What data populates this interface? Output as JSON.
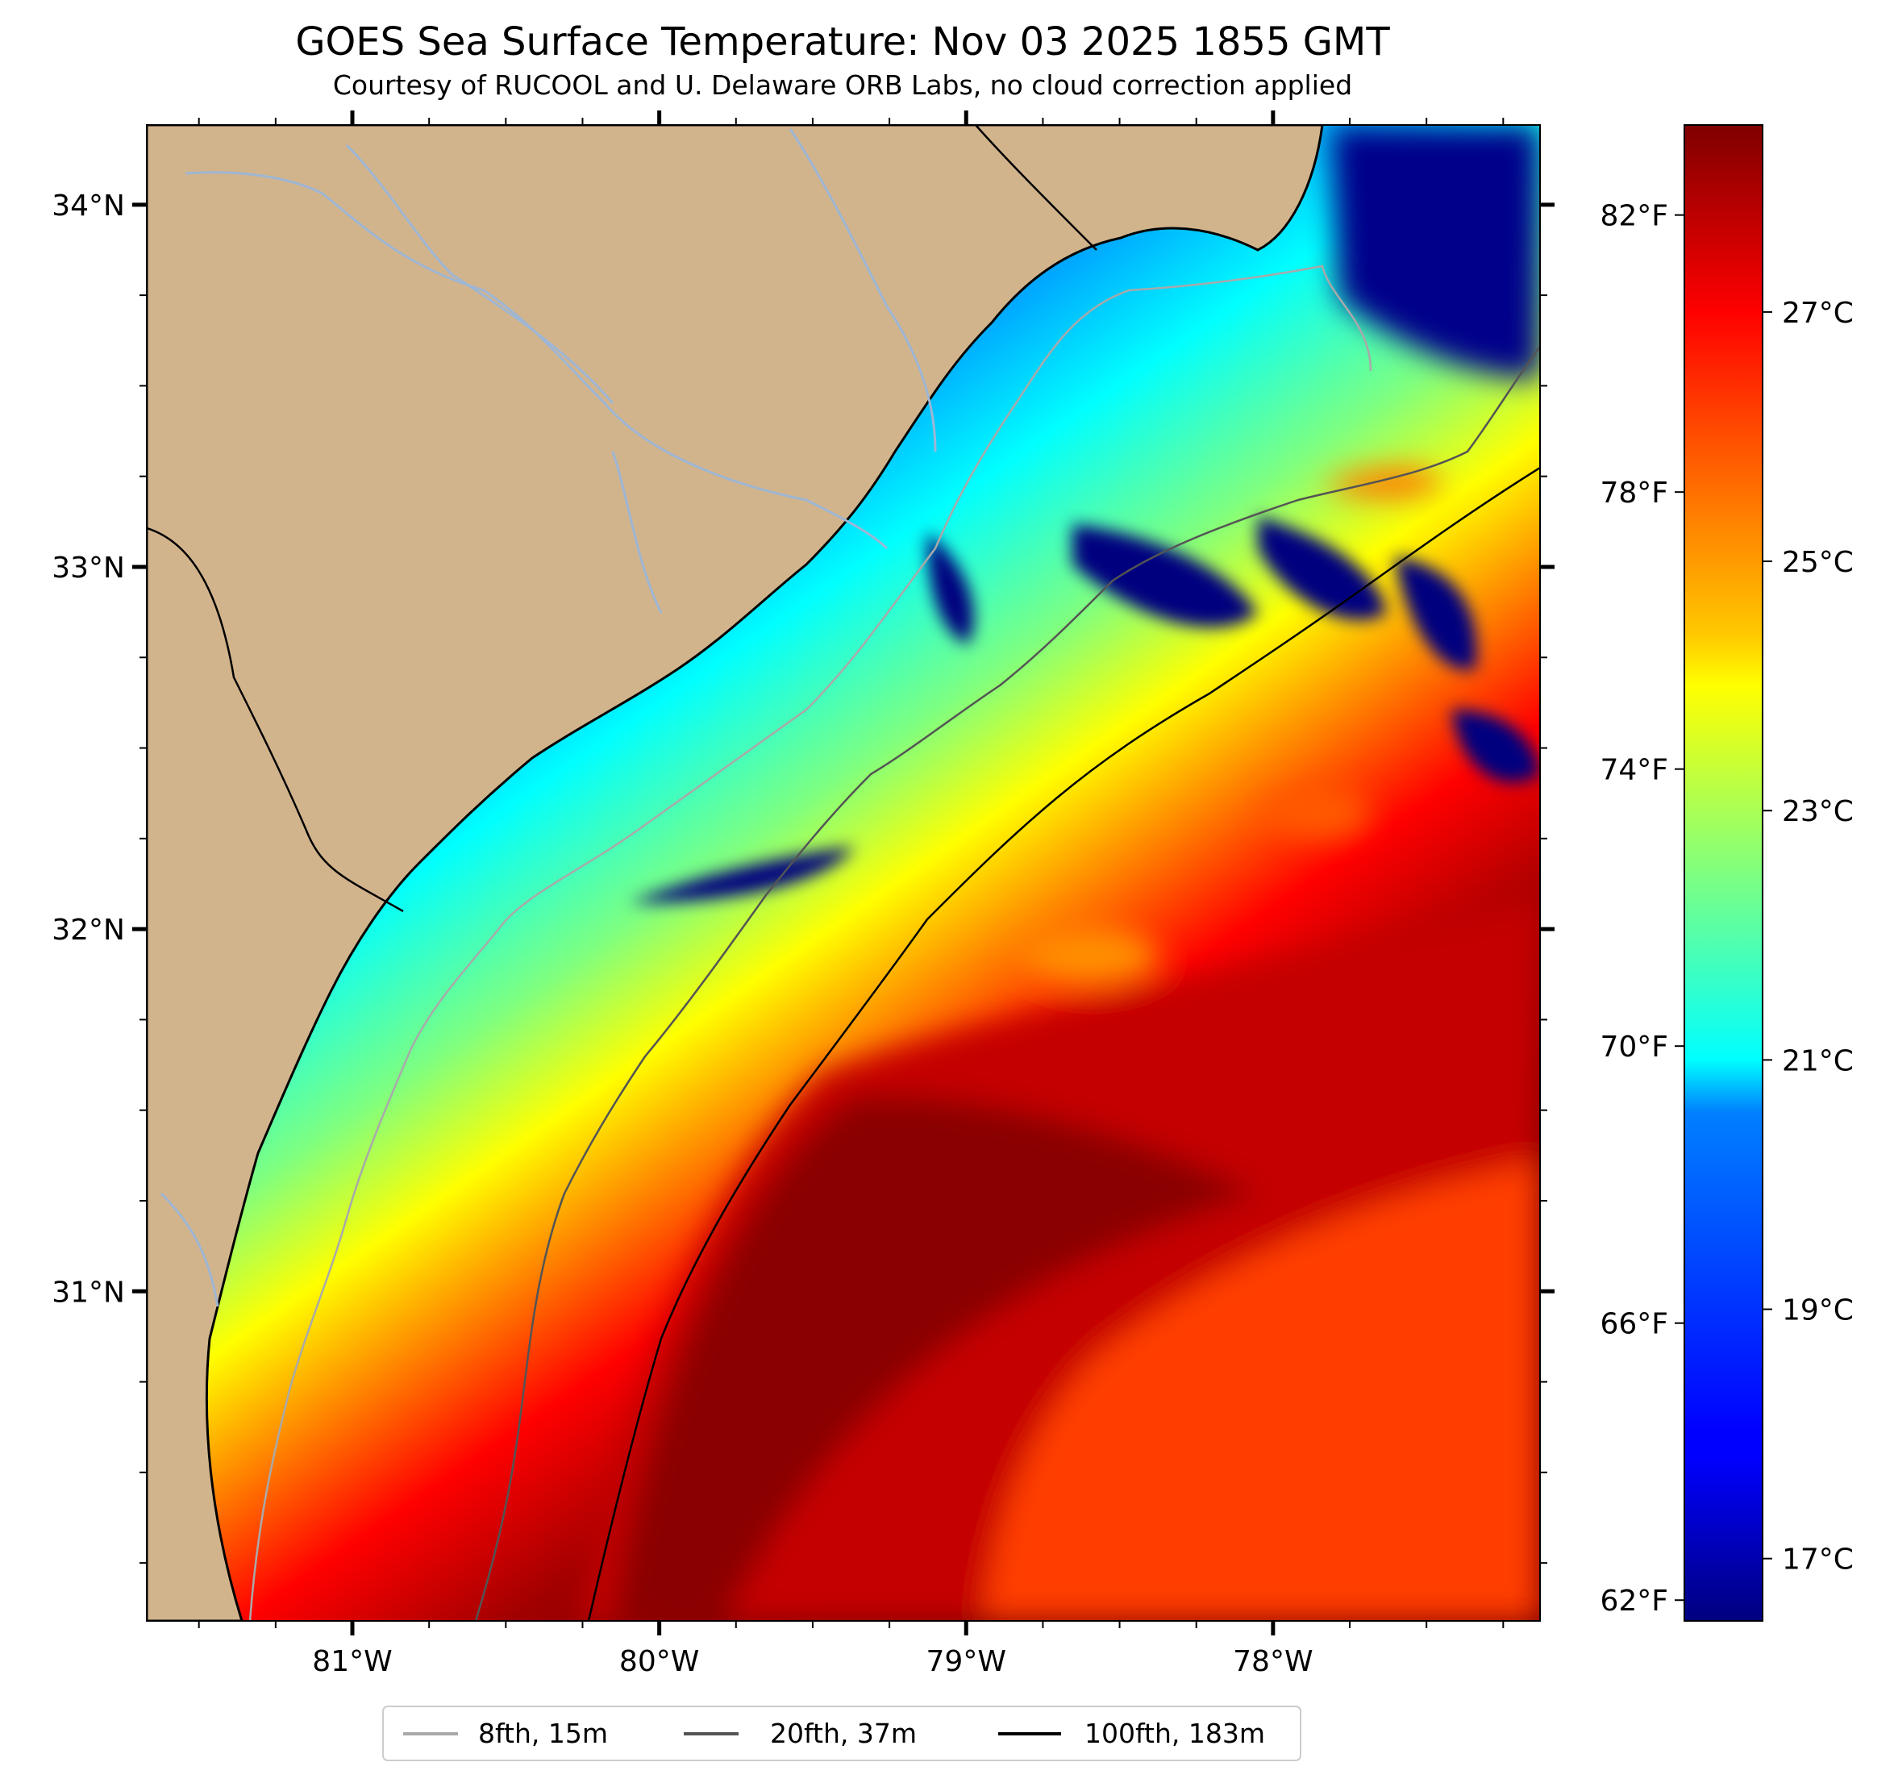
{
  "title": "GOES Sea Surface Temperature: Nov 03 2025 1855 GMT",
  "subtitle": "Courtesy of RUCOOL and U. Delaware ORB Labs, no cloud correction applied",
  "map": {
    "lon_range": [
      -81.67,
      -77.13
    ],
    "lat_range": [
      30.09,
      34.22
    ],
    "lon_ticks": [
      {
        "value": -81,
        "label": "81°W"
      },
      {
        "value": -80,
        "label": "80°W"
      },
      {
        "value": -79,
        "label": "79°W"
      },
      {
        "value": -78,
        "label": "78°W"
      }
    ],
    "lat_ticks": [
      {
        "value": 34,
        "label": "34°N"
      },
      {
        "value": 33,
        "label": "33°N"
      },
      {
        "value": 32,
        "label": "32°N"
      },
      {
        "value": 31,
        "label": "31°N"
      }
    ],
    "land_color": "#d2b48c",
    "river_color": "#9eb6d4",
    "coast_color": "#000000"
  },
  "colorbar": {
    "colormap": "jet",
    "celsius_range": [
      16.5,
      28.5
    ],
    "fahrenheit_ticks": [
      {
        "value": 62,
        "label": "62°F"
      },
      {
        "value": 66,
        "label": "66°F"
      },
      {
        "value": 70,
        "label": "70°F"
      },
      {
        "value": 74,
        "label": "74°F"
      },
      {
        "value": 78,
        "label": "78°F"
      },
      {
        "value": 82,
        "label": "82°F"
      }
    ],
    "celsius_ticks": [
      {
        "value": 17,
        "label": "17°C"
      },
      {
        "value": 19,
        "label": "19°C"
      },
      {
        "value": 21,
        "label": "21°C"
      },
      {
        "value": 23,
        "label": "23°C"
      },
      {
        "value": 25,
        "label": "25°C"
      },
      {
        "value": 27,
        "label": "27°C"
      }
    ]
  },
  "legend": [
    {
      "label": "8fth, 15m",
      "color": "#a9a9a9"
    },
    {
      "label": "20fth, 37m",
      "color": "#545454"
    },
    {
      "label": "100fth, 183m",
      "color": "#000000"
    }
  ]
}
